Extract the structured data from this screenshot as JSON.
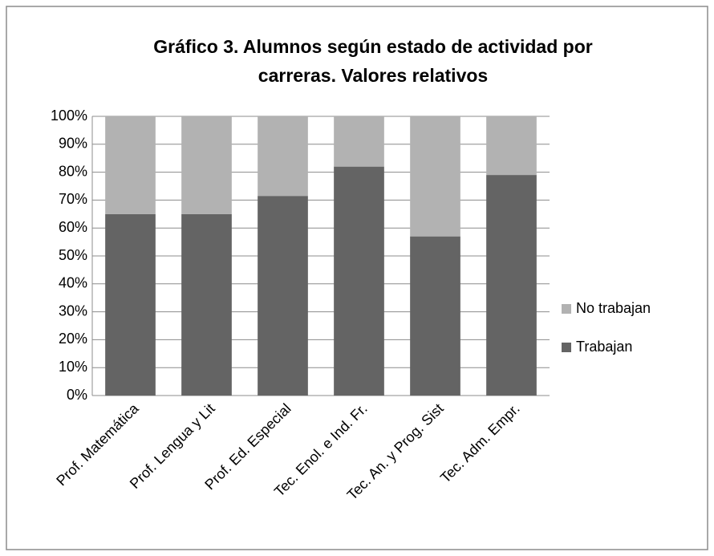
{
  "chart_data": {
    "type": "stacked_bar",
    "title": [
      "Gráfico 3. Alumnos según estado de actividad por",
      "carreras. Valores relativos"
    ],
    "categories": [
      "Prof. Matemática",
      "Prof. Lengua y Lit",
      "Prof. Ed. Especial",
      "Tec. Enol. e Ind. Fr.",
      "Tec. An. y Prog. Sist",
      "Tec. Adm. Empr."
    ],
    "series": [
      {
        "name": "Trabajan",
        "color": "#646464",
        "values": [
          65,
          65,
          71.5,
          82,
          57,
          79
        ]
      },
      {
        "name": "No trabajan",
        "color": "#b2b2b2",
        "values": [
          35,
          35,
          28.5,
          18,
          43,
          21
        ]
      }
    ],
    "ylim": [
      0,
      100
    ],
    "yticks": [
      {
        "value": 0,
        "label": "0%"
      },
      {
        "value": 10,
        "label": "10%"
      },
      {
        "value": 20,
        "label": "20%"
      },
      {
        "value": 30,
        "label": "30%"
      },
      {
        "value": 40,
        "label": "40%"
      },
      {
        "value": 50,
        "label": "50%"
      },
      {
        "value": 60,
        "label": "60%"
      },
      {
        "value": 70,
        "label": "70%"
      },
      {
        "value": 80,
        "label": "80%"
      },
      {
        "value": 90,
        "label": "90%"
      },
      {
        "value": 100,
        "label": "100%"
      }
    ],
    "grid": true,
    "legend": "right"
  }
}
